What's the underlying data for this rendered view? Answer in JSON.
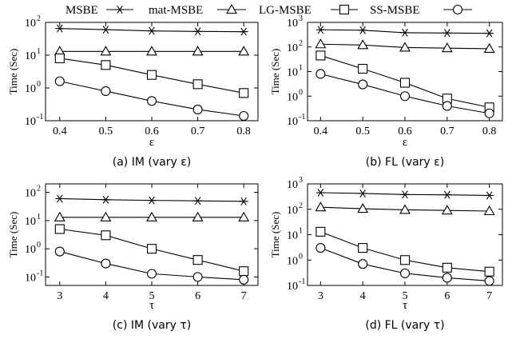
{
  "legend": {
    "entries": [
      {
        "label": "MSBE",
        "marker": "star"
      },
      {
        "label": "mat-MSBE",
        "marker": "triangle"
      },
      {
        "label": "LG-MSBE",
        "marker": "square"
      },
      {
        "label": "SS-MSBE",
        "marker": "circle"
      }
    ],
    "placement": "top"
  },
  "chart_data": [
    {
      "type": "line",
      "caption": "(a)  IM (vary ε)",
      "xlabel": "ε",
      "ylabel": "Time (Sec)",
      "x": [
        0.4,
        0.5,
        0.6,
        0.7,
        0.8
      ],
      "x_tick_labels": [
        "0.4",
        "0.5",
        "0.6",
        "0.7",
        "0.8"
      ],
      "y_scale": "log",
      "ylim": [
        0.1,
        100
      ],
      "y_tick_values": [
        0.1,
        1,
        10,
        100
      ],
      "y_tick_labels": [
        "10",
        "10",
        "10",
        "10"
      ],
      "y_tick_exponents": [
        "-1",
        "0",
        "1",
        "2"
      ],
      "series": [
        {
          "name": "MSBE",
          "values": [
            65,
            60,
            55,
            53,
            52
          ]
        },
        {
          "name": "mat-MSBE",
          "values": [
            13,
            13,
            13,
            13,
            13
          ]
        },
        {
          "name": "LG-MSBE",
          "values": [
            8,
            5,
            2.5,
            1.3,
            0.7
          ]
        },
        {
          "name": "SS-MSBE",
          "values": [
            1.6,
            0.8,
            0.4,
            0.22,
            0.14
          ]
        }
      ]
    },
    {
      "type": "line",
      "caption": "(b)  FL (vary ε)",
      "xlabel": "ε",
      "ylabel": "Time (Sec)",
      "x": [
        0.4,
        0.5,
        0.6,
        0.7,
        0.8
      ],
      "x_tick_labels": [
        "0.4",
        "0.5",
        "0.6",
        "0.7",
        "0.8"
      ],
      "y_scale": "log",
      "ylim": [
        0.1,
        1000
      ],
      "y_tick_values": [
        0.1,
        1,
        10,
        100,
        1000
      ],
      "y_tick_labels": [
        "10",
        "10",
        "10",
        "10",
        "10"
      ],
      "y_tick_exponents": [
        "-1",
        "0",
        "1",
        "2",
        "3"
      ],
      "series": [
        {
          "name": "MSBE",
          "values": [
            500,
            480,
            380,
            370,
            360
          ]
        },
        {
          "name": "mat-MSBE",
          "values": [
            130,
            120,
            95,
            90,
            85
          ]
        },
        {
          "name": "LG-MSBE",
          "values": [
            45,
            13,
            3.5,
            0.8,
            0.35
          ]
        },
        {
          "name": "SS-MSBE",
          "values": [
            8,
            3,
            1,
            0.4,
            0.2
          ]
        }
      ]
    },
    {
      "type": "line",
      "caption": "(c)  IM (vary τ)",
      "xlabel": "τ",
      "ylabel": "Time (Sec)",
      "x": [
        3,
        4,
        5,
        6,
        7
      ],
      "x_tick_labels": [
        "3",
        "4",
        "5",
        "6",
        "7"
      ],
      "y_scale": "log",
      "ylim": [
        0.05,
        200
      ],
      "y_tick_values": [
        0.1,
        1,
        10,
        100
      ],
      "y_tick_labels": [
        "10",
        "10",
        "10",
        "10"
      ],
      "y_tick_exponents": [
        "-1",
        "0",
        "1",
        "2"
      ],
      "series": [
        {
          "name": "MSBE",
          "values": [
            60,
            55,
            52,
            50,
            48
          ]
        },
        {
          "name": "mat-MSBE",
          "values": [
            13,
            13,
            13,
            13,
            13
          ]
        },
        {
          "name": "LG-MSBE",
          "values": [
            5,
            3,
            1,
            0.4,
            0.16
          ]
        },
        {
          "name": "SS-MSBE",
          "values": [
            0.8,
            0.3,
            0.13,
            0.1,
            0.08
          ]
        }
      ]
    },
    {
      "type": "line",
      "caption": "(d)  FL (vary τ)",
      "xlabel": "τ",
      "ylabel": "Time (Sec)",
      "x": [
        3,
        4,
        5,
        6,
        7
      ],
      "x_tick_labels": [
        "3",
        "4",
        "5",
        "6",
        "7"
      ],
      "y_scale": "log",
      "ylim": [
        0.1,
        1000
      ],
      "y_tick_values": [
        0.1,
        1,
        10,
        100,
        1000
      ],
      "y_tick_labels": [
        "10",
        "10",
        "10",
        "10",
        "10"
      ],
      "y_tick_exponents": [
        "-1",
        "0",
        "1",
        "2",
        "3"
      ],
      "series": [
        {
          "name": "MSBE",
          "values": [
            450,
            420,
            380,
            370,
            350
          ]
        },
        {
          "name": "mat-MSBE",
          "values": [
            120,
            105,
            95,
            90,
            85
          ]
        },
        {
          "name": "LG-MSBE",
          "values": [
            13,
            3,
            1,
            0.5,
            0.35
          ]
        },
        {
          "name": "SS-MSBE",
          "values": [
            3,
            0.7,
            0.3,
            0.2,
            0.15
          ]
        }
      ]
    }
  ]
}
